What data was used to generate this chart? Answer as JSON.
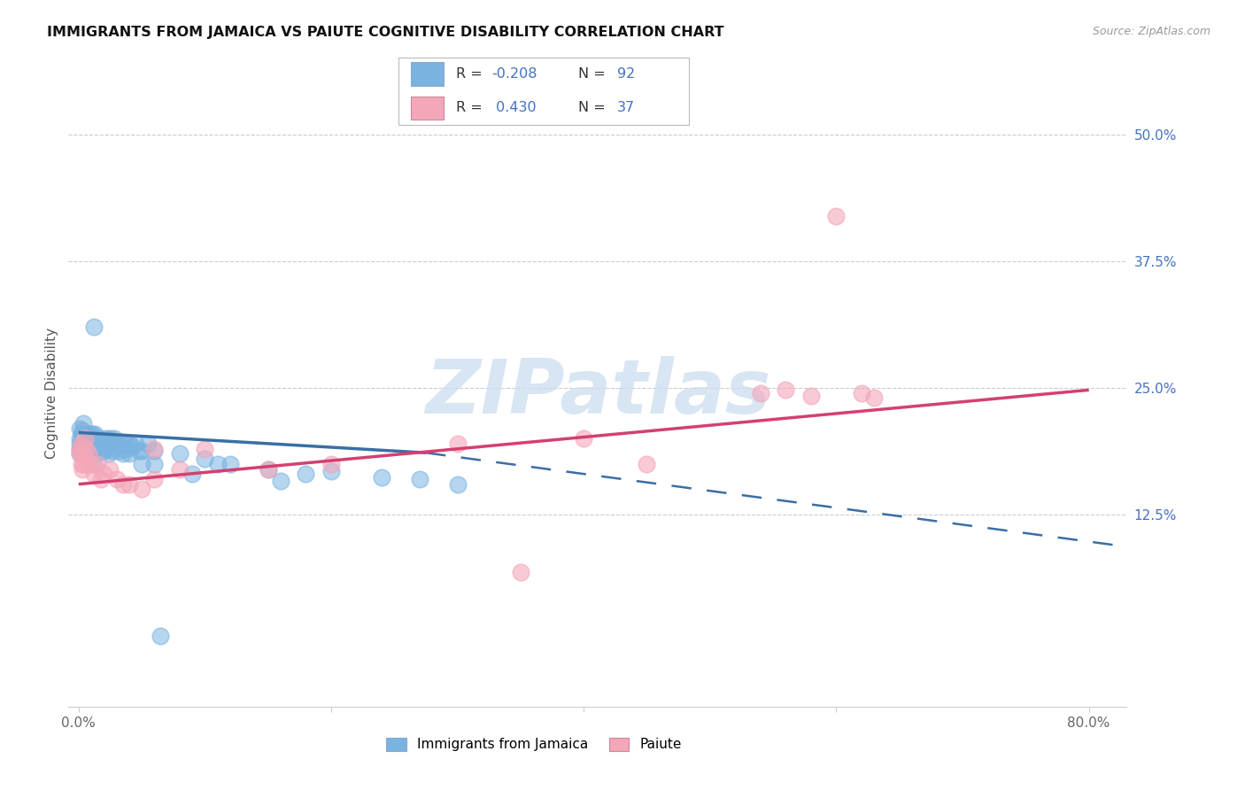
{
  "title": "IMMIGRANTS FROM JAMAICA VS PAIUTE COGNITIVE DISABILITY CORRELATION CHART",
  "source": "Source: ZipAtlas.com",
  "ylabel": "Cognitive Disability",
  "legend_label1": "Immigrants from Jamaica",
  "legend_label2": "Paiute",
  "R1": -0.208,
  "N1": 92,
  "R2": 0.43,
  "N2": 37,
  "xlim": [
    -0.008,
    0.83
  ],
  "ylim": [
    -0.065,
    0.555
  ],
  "color_blue": "#7ab3e0",
  "color_pink": "#f4a7b9",
  "color_blue_line": "#3a6ea5",
  "color_pink_line": "#d44070",
  "color_ytick": "#4472c4",
  "background_color": "#ffffff",
  "watermark": "ZIPatlas",
  "grid_color": "#cccccc",
  "blue_line_x0": 0.0,
  "blue_line_x_solid_end": 0.275,
  "blue_line_x_dash_end": 0.82,
  "blue_line_y0": 0.206,
  "blue_line_y_solid_end": 0.186,
  "blue_line_y_dash_end": 0.095,
  "pink_line_x0": 0.0,
  "pink_line_x_end": 0.8,
  "pink_line_y0": 0.155,
  "pink_line_y_end": 0.248,
  "blue_x": [
    0.001,
    0.001,
    0.001,
    0.001,
    0.001,
    0.002,
    0.002,
    0.002,
    0.002,
    0.003,
    0.003,
    0.003,
    0.003,
    0.003,
    0.004,
    0.004,
    0.004,
    0.004,
    0.005,
    0.005,
    0.005,
    0.005,
    0.006,
    0.006,
    0.006,
    0.007,
    0.007,
    0.007,
    0.008,
    0.008,
    0.008,
    0.009,
    0.009,
    0.01,
    0.01,
    0.01,
    0.011,
    0.011,
    0.012,
    0.012,
    0.013,
    0.013,
    0.014,
    0.014,
    0.015,
    0.015,
    0.016,
    0.017,
    0.018,
    0.019,
    0.02,
    0.021,
    0.022,
    0.023,
    0.024,
    0.025,
    0.027,
    0.028,
    0.03,
    0.032,
    0.034,
    0.036,
    0.038,
    0.04,
    0.042,
    0.045,
    0.048,
    0.05,
    0.055,
    0.06,
    0.012,
    0.015,
    0.02,
    0.025,
    0.03,
    0.035,
    0.04,
    0.05,
    0.06,
    0.08,
    0.1,
    0.12,
    0.15,
    0.18,
    0.2,
    0.24,
    0.27,
    0.3,
    0.065,
    0.09,
    0.11,
    0.16
  ],
  "blue_y": [
    0.2,
    0.195,
    0.19,
    0.185,
    0.21,
    0.198,
    0.193,
    0.188,
    0.205,
    0.195,
    0.2,
    0.188,
    0.192,
    0.208,
    0.195,
    0.202,
    0.188,
    0.215,
    0.197,
    0.192,
    0.205,
    0.185,
    0.2,
    0.195,
    0.188,
    0.205,
    0.195,
    0.188,
    0.2,
    0.192,
    0.185,
    0.198,
    0.205,
    0.2,
    0.193,
    0.188,
    0.205,
    0.195,
    0.31,
    0.195,
    0.205,
    0.19,
    0.198,
    0.185,
    0.2,
    0.192,
    0.195,
    0.2,
    0.192,
    0.195,
    0.188,
    0.195,
    0.2,
    0.192,
    0.185,
    0.195,
    0.188,
    0.2,
    0.195,
    0.188,
    0.195,
    0.19,
    0.195,
    0.185,
    0.192,
    0.195,
    0.188,
    0.175,
    0.195,
    0.188,
    0.175,
    0.192,
    0.188,
    0.2,
    0.192,
    0.185,
    0.195,
    0.188,
    0.175,
    0.185,
    0.18,
    0.175,
    0.17,
    0.165,
    0.168,
    0.162,
    0.16,
    0.155,
    0.005,
    0.165,
    0.175,
    0.158
  ],
  "pink_x": [
    0.001,
    0.001,
    0.002,
    0.002,
    0.003,
    0.003,
    0.004,
    0.005,
    0.006,
    0.007,
    0.008,
    0.01,
    0.012,
    0.015,
    0.018,
    0.02,
    0.025,
    0.03,
    0.035,
    0.04,
    0.05,
    0.06,
    0.08,
    0.1,
    0.15,
    0.2,
    0.3,
    0.35,
    0.4,
    0.45,
    0.54,
    0.56,
    0.58,
    0.6,
    0.62,
    0.63,
    0.06
  ],
  "pink_y": [
    0.19,
    0.185,
    0.195,
    0.175,
    0.185,
    0.17,
    0.175,
    0.2,
    0.19,
    0.175,
    0.185,
    0.175,
    0.165,
    0.175,
    0.16,
    0.165,
    0.17,
    0.16,
    0.155,
    0.155,
    0.15,
    0.16,
    0.17,
    0.19,
    0.17,
    0.175,
    0.195,
    0.068,
    0.2,
    0.175,
    0.245,
    0.248,
    0.242,
    0.42,
    0.245,
    0.24,
    0.19
  ]
}
